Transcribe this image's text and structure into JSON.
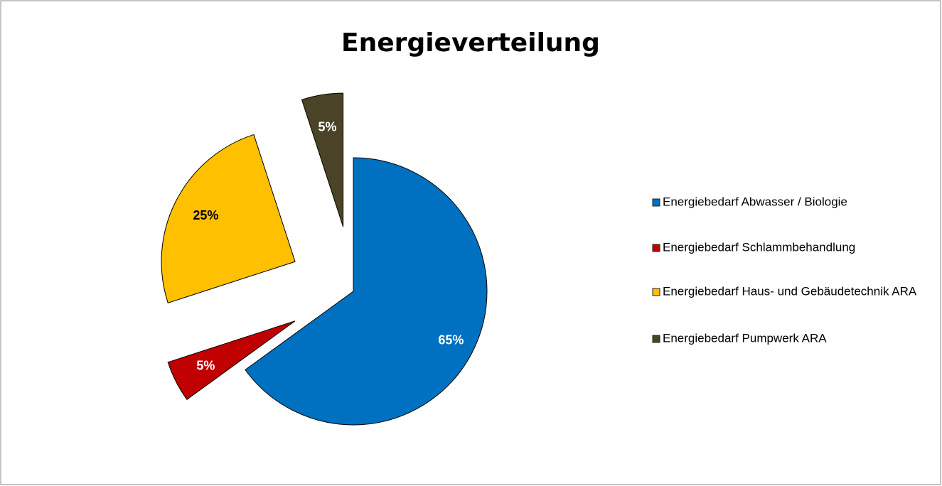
{
  "chart_data": {
    "type": "pie",
    "title": "Energieverteilung",
    "categories": [
      "Energiebedarf Abwasser / Biologie",
      "Energiebedarf Schlammbehandlung",
      "Energiebedarf Haus- und Gebäudetechnik ARA",
      "Energiebedarf Pumpwerk ARA"
    ],
    "values": [
      65,
      5,
      25,
      5
    ],
    "value_labels": [
      "65%",
      "5%",
      "25%",
      "5%"
    ],
    "colors": [
      "#0070c0",
      "#c00000",
      "#ffc000",
      "#4a4328"
    ],
    "legend": "right"
  }
}
